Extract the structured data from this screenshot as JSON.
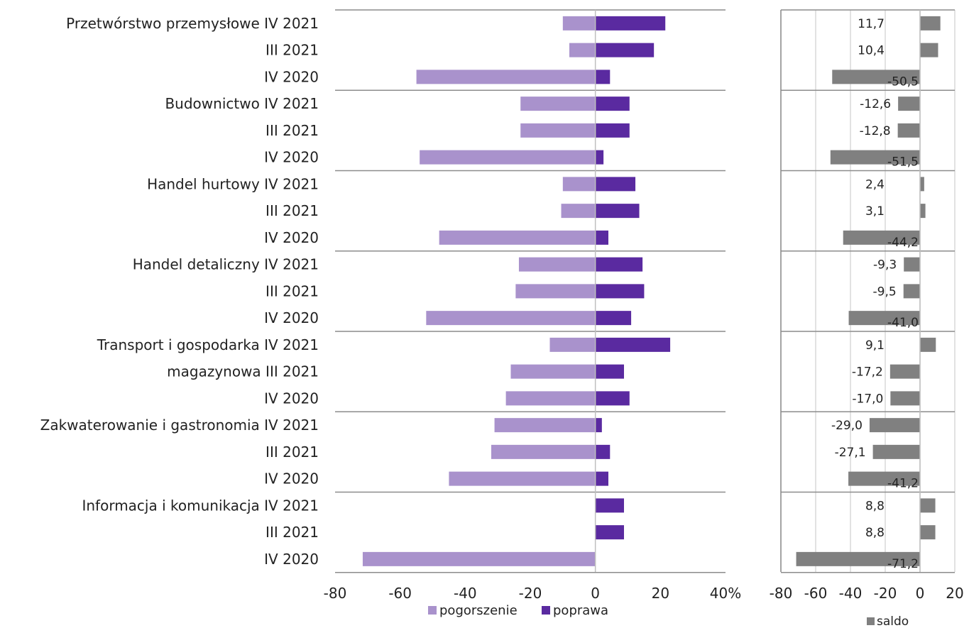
{
  "chart_data": [
    {
      "type": "bar",
      "orientation": "horizontal",
      "stacked": "diverging",
      "groups": [
        "Przetwórstwo przemysłowe",
        "Budownictwo",
        "Handel hurtowy",
        "Handel detaliczny",
        "Transport i gospodarka magazynowa",
        "Zakwaterowanie i gastronomia",
        "Informacja i komunikacja"
      ],
      "row_labels": [
        "Przetwórstwo przemysłowe IV 2021",
        "III 2021",
        "IV 2020",
        "Budownictwo IV 2021",
        "III 2021",
        "IV 2020",
        "Handel hurtowy IV 2021",
        "III 2021",
        "IV 2020",
        "Handel detaliczny IV 2021",
        "III 2021",
        "IV 2020",
        "Transport i gospodarka IV 2021",
        "magazynowa  III 2021",
        "IV 2020",
        "Zakwaterowanie i gastronomia IV 2021",
        "III 2021",
        "IV 2020",
        "Informacja i komunikacja IV 2021",
        "III 2021",
        "IV 2020"
      ],
      "series": [
        {
          "name": "pogorszenie",
          "color": "#a992cc",
          "values": [
            -10,
            -8,
            -55,
            -23,
            -23,
            -54,
            -10,
            -10.5,
            -48,
            -23.5,
            -24.5,
            -52,
            -14,
            -26,
            -27.5,
            -31,
            -32,
            -45,
            0,
            0,
            -71.5
          ]
        },
        {
          "name": "poprawa",
          "color": "#5a2aa0",
          "values": [
            21.5,
            18,
            4.5,
            10.5,
            10.5,
            2.5,
            12.3,
            13.5,
            4,
            14.5,
            15,
            11,
            23,
            8.8,
            10.5,
            2,
            4.5,
            4,
            8.8,
            8.8,
            0
          ]
        }
      ],
      "xlim": [
        -80,
        40
      ],
      "xticks": [
        -80,
        -60,
        -40,
        -20,
        0,
        20,
        40
      ],
      "xtick_labels": [
        "-80",
        "-60",
        "-40",
        "-20",
        "0",
        "20",
        "40%"
      ],
      "xlabel": "",
      "ylabel": "",
      "title": "",
      "grid": false,
      "legend": "bottom"
    },
    {
      "type": "bar",
      "orientation": "horizontal",
      "series": [
        {
          "name": "saldo",
          "color": "#808080",
          "values": [
            11.7,
            10.4,
            -50.5,
            -12.6,
            -12.8,
            -51.5,
            2.4,
            3.1,
            -44.2,
            -9.3,
            -9.5,
            -41.0,
            9.1,
            -17.2,
            -17.0,
            -29.0,
            -27.1,
            -41.2,
            8.8,
            8.8,
            -71.2
          ],
          "data_labels": [
            "11,7",
            "10,4",
            "-50,5",
            "-12,6",
            "-12,8",
            "-51,5",
            "2,4",
            "3,1",
            "-44,2",
            "-9,3",
            "-9,5",
            "-41,0",
            "9,1",
            "-17,2",
            "-17,0",
            "-29,0",
            "-27,1",
            "-41,2",
            "8,8",
            "8,8",
            "-71,2"
          ]
        }
      ],
      "xlim": [
        -80,
        20
      ],
      "xticks": [
        -80,
        -60,
        -40,
        -20,
        0,
        20
      ],
      "xtick_labels": [
        "-80",
        "-60",
        "-40",
        "-20",
        "0",
        "20"
      ],
      "xlabel": "",
      "ylabel": "",
      "title": "",
      "grid": true,
      "legend": "bottom"
    }
  ]
}
